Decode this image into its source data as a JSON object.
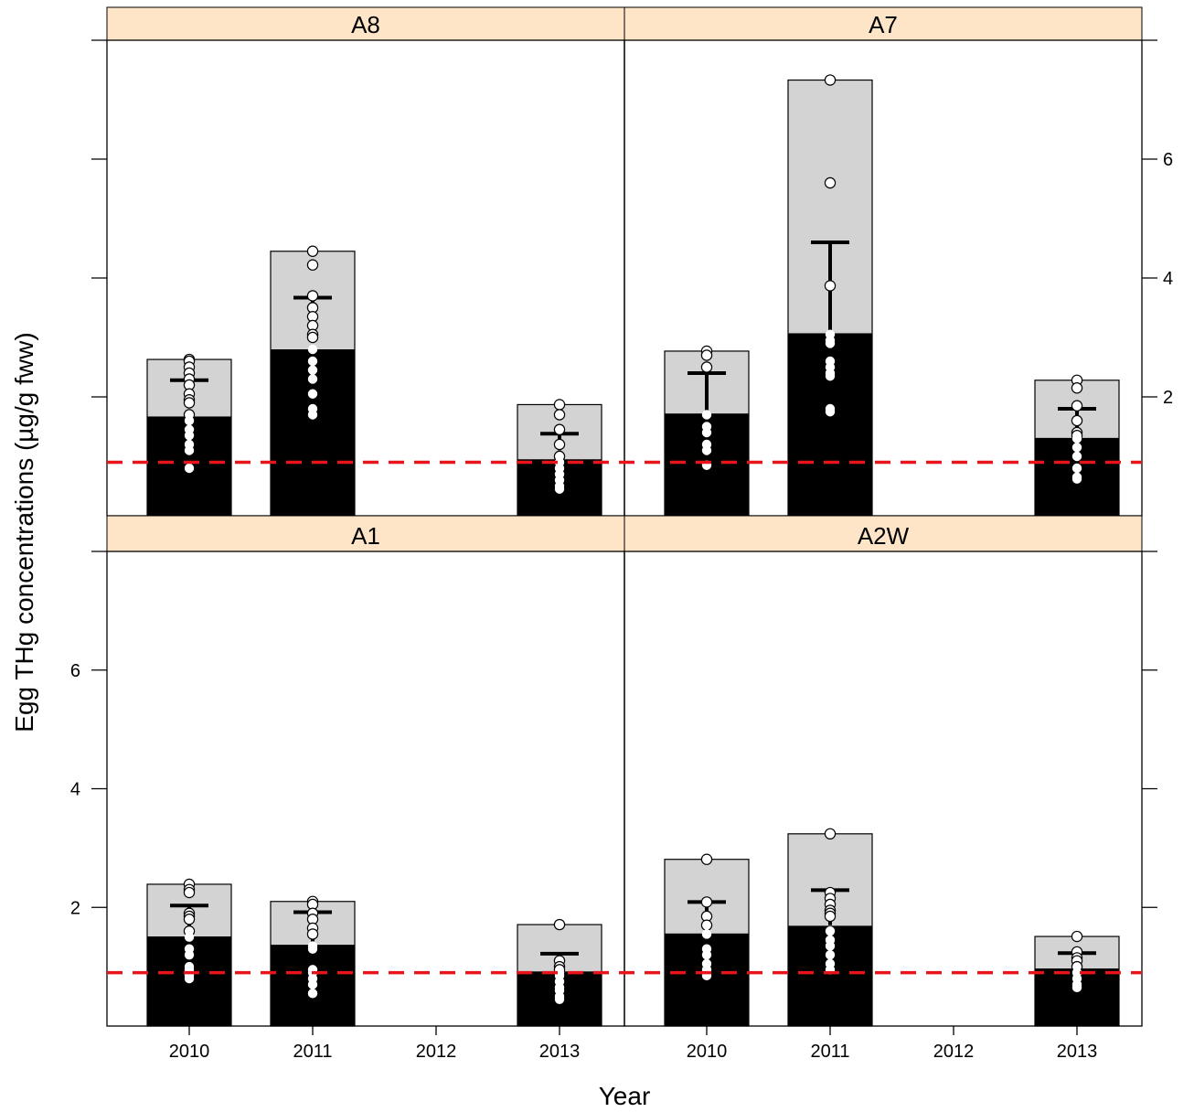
{
  "chart_data": {
    "type": "bar",
    "xlabel": "Year",
    "ylabel": "Egg THg concentrations (µg/g fww)",
    "categories": [
      "2010",
      "2011",
      "2012",
      "2013"
    ],
    "ylim": [
      0,
      8
    ],
    "yticks": [
      2,
      4,
      6
    ],
    "reference_line": {
      "value": 0.9,
      "color": "#e8141a",
      "style": "dashed"
    },
    "colors": {
      "strip": "#ffe5c8",
      "bar_upper": "#d3d3d3",
      "bar_lower": "#000000",
      "point_fill": "#ffffff"
    },
    "panels": [
      {
        "name": "A8",
        "bars": [
          {
            "year": "2010",
            "lower": 1.67,
            "upper": 2.63,
            "mean": 2.28,
            "err_low": 1.9,
            "points": [
              2.63,
              2.6,
              2.5,
              2.4,
              2.3,
              2.2,
              2.05,
              1.95,
              1.9,
              1.7,
              1.6,
              1.45,
              1.35,
              1.2,
              1.1,
              0.8
            ]
          },
          {
            "year": "2011",
            "lower": 2.8,
            "upper": 4.45,
            "mean": 3.67,
            "err_low": 3.0,
            "points": [
              4.45,
              4.22,
              3.7,
              3.5,
              3.35,
              3.2,
              3.05,
              3.0,
              2.8,
              2.6,
              2.45,
              2.3,
              2.05,
              1.8,
              1.7
            ]
          },
          {
            "year": "2013",
            "lower": 0.95,
            "upper": 1.87,
            "mean": 1.38,
            "err_low": 1.1,
            "points": [
              1.87,
              1.7,
              1.45,
              1.2,
              1.0,
              0.9,
              0.8,
              0.7,
              0.6,
              0.5,
              0.45
            ]
          }
        ]
      },
      {
        "name": "A7",
        "bars": [
          {
            "year": "2010",
            "lower": 1.72,
            "upper": 2.77,
            "mean": 2.4,
            "err_low": 1.7,
            "points": [
              2.77,
              2.7,
              2.5,
              1.7,
              1.5,
              1.4,
              1.2,
              1.1,
              0.85
            ]
          },
          {
            "year": "2011",
            "lower": 3.07,
            "upper": 7.33,
            "mean": 4.6,
            "err_low": 3.1,
            "points": [
              7.33,
              5.6,
              3.87,
              3.05,
              2.95,
              2.9,
              2.6,
              2.5,
              2.4,
              2.35,
              1.8,
              1.75
            ]
          },
          {
            "year": "2013",
            "lower": 1.31,
            "upper": 2.28,
            "mean": 1.8,
            "err_low": 1.3,
            "points": [
              2.28,
              2.15,
              1.85,
              1.6,
              1.4,
              1.35,
              1.3,
              1.15,
              1.0,
              0.8,
              0.65,
              0.62
            ]
          }
        ]
      },
      {
        "name": "A1",
        "bars": [
          {
            "year": "2010",
            "lower": 1.51,
            "upper": 2.39,
            "mean": 2.03,
            "err_low": 1.5,
            "points": [
              2.39,
              2.3,
              2.25,
              1.9,
              1.85,
              1.8,
              1.6,
              1.5,
              1.3,
              1.2,
              1.0,
              0.95,
              0.85,
              0.8
            ]
          },
          {
            "year": "2011",
            "lower": 1.37,
            "upper": 2.1,
            "mean": 1.92,
            "err_low": 1.4,
            "points": [
              2.1,
              2.05,
              1.9,
              1.8,
              1.65,
              1.55,
              1.35,
              1.3,
              0.95,
              0.9,
              0.8,
              0.7,
              0.55
            ]
          },
          {
            "year": "2013",
            "lower": 0.92,
            "upper": 1.71,
            "mean": 1.22,
            "err_low": 0.95,
            "points": [
              1.71,
              1.1,
              1.0,
              0.95,
              0.9,
              0.85,
              0.75,
              0.65,
              0.6,
              0.5,
              0.45
            ]
          }
        ]
      },
      {
        "name": "A2W",
        "bars": [
          {
            "year": "2010",
            "lower": 1.56,
            "upper": 2.81,
            "mean": 2.09,
            "err_low": 1.6,
            "points": [
              2.81,
              2.09,
              1.85,
              1.7,
              1.55,
              1.3,
              1.2,
              1.05,
              0.95,
              0.85
            ]
          },
          {
            "year": "2011",
            "lower": 1.69,
            "upper": 3.24,
            "mean": 2.29,
            "err_low": 1.7,
            "points": [
              3.24,
              2.25,
              2.15,
              2.05,
              1.95,
              1.9,
              1.85,
              1.6,
              1.45,
              1.35,
              1.2,
              1.05,
              0.95
            ]
          },
          {
            "year": "2013",
            "lower": 0.97,
            "upper": 1.51,
            "mean": 1.23,
            "err_low": 1.0,
            "points": [
              1.51,
              1.25,
              1.15,
              1.1,
              1.0,
              0.9,
              0.8,
              0.7,
              0.65
            ]
          }
        ]
      }
    ]
  }
}
